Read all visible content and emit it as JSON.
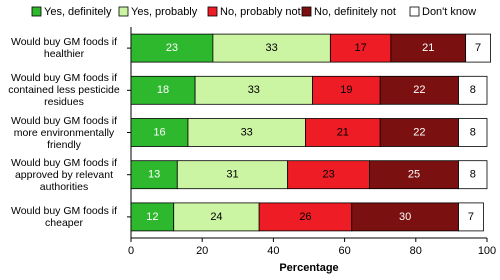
{
  "chart_data": {
    "type": "stacked-barh",
    "categories": [
      "Would buy GM foods if healthier",
      "Would buy GM foods if contained less pesticide residues",
      "Would buy GM foods if more environmentally friendly",
      "Would buy GM foods if approved by relevant authorities",
      "Would buy GM foods if cheaper"
    ],
    "series": [
      {
        "name": "Yes, definitely",
        "color": "#2eb82e",
        "values": [
          23,
          18,
          16,
          13,
          12
        ]
      },
      {
        "name": "Yes, probably",
        "color": "#ccf5a3",
        "values": [
          33,
          33,
          33,
          31,
          24
        ]
      },
      {
        "name": "No, probably not",
        "color": "#ee1c24",
        "values": [
          17,
          19,
          21,
          23,
          26
        ]
      },
      {
        "name": "No, definitely not",
        "color": "#7b1010",
        "values": [
          21,
          22,
          22,
          25,
          30
        ]
      },
      {
        "name": "Don't know",
        "color": "#ffffff",
        "values": [
          7,
          8,
          8,
          8,
          7
        ]
      }
    ],
    "x_label": "Percentage",
    "xlim": [
      0,
      100
    ],
    "xticks": [
      0,
      20,
      40,
      60,
      80,
      100
    ]
  }
}
